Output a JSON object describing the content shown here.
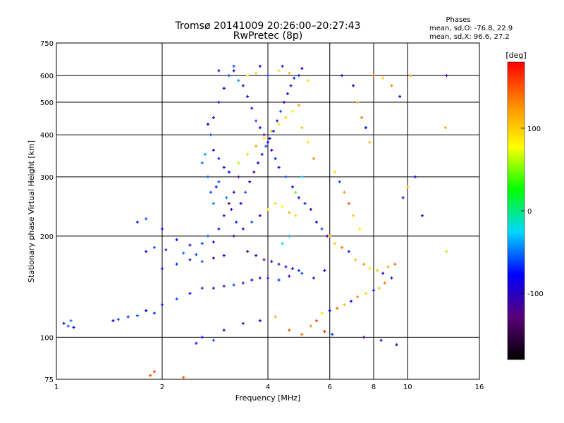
{
  "chart_data": {
    "type": "scatter",
    "title": "Tromsø 20141009 20:26:00–20:27:43",
    "subtitle": "RwPretec (8p)",
    "xlabel": "Frequency [MHz]",
    "ylabel": "Stationary phase Virtual Height [km]",
    "x_scale": "log",
    "y_scale": "log",
    "xlim": [
      1,
      16
    ],
    "ylim": [
      75,
      750
    ],
    "x_ticks": [
      1,
      2,
      4,
      6,
      8,
      10,
      16
    ],
    "x_tick_labels": [
      "1",
      "2",
      "4",
      "6",
      "8",
      "10",
      "16"
    ],
    "y_ticks": [
      75,
      100,
      200,
      300,
      400,
      500,
      600,
      750
    ],
    "y_tick_labels": [
      "75",
      "100",
      "200",
      "300",
      "400",
      "500",
      "600",
      "750"
    ],
    "grid": true,
    "phases_title": "Phases",
    "phases_o": "mean, sd,O: -76.8, 22.9",
    "phases_x": "mean, sd,X: 96.6, 27.2",
    "colorbar": {
      "label": "[deg]",
      "range": [
        -180,
        180
      ],
      "ticks": [
        100,
        0,
        -100
      ],
      "tick_labels": [
        "100",
        "0",
        "-100"
      ],
      "colormap": [
        "#000000",
        "#5a0078",
        "#0000ff",
        "#00d7ff",
        "#00ff00",
        "#ffff00",
        "#ff8c00",
        "#ff0000"
      ]
    },
    "points": [
      [
        1.05,
        110,
        -90
      ],
      [
        1.08,
        108,
        -60
      ],
      [
        1.12,
        107,
        -75
      ],
      [
        1.1,
        112,
        -50
      ],
      [
        1.45,
        112,
        -80
      ],
      [
        1.5,
        113,
        -60
      ],
      [
        1.6,
        115,
        -70
      ],
      [
        1.7,
        116,
        -55
      ],
      [
        1.8,
        120,
        -85
      ],
      [
        1.9,
        118,
        -65
      ],
      [
        2.0,
        125,
        -75
      ],
      [
        2.2,
        130,
        -60
      ],
      [
        2.4,
        135,
        -80
      ],
      [
        2.6,
        140,
        -70
      ],
      [
        2.8,
        140,
        -95
      ],
      [
        3.0,
        142,
        -110
      ],
      [
        3.2,
        143,
        -60
      ],
      [
        3.4,
        145,
        -100
      ],
      [
        3.6,
        148,
        -80
      ],
      [
        3.8,
        150,
        -120
      ],
      [
        4.0,
        150,
        -90
      ],
      [
        4.3,
        148,
        -70
      ],
      [
        4.6,
        152,
        -110
      ],
      [
        5.0,
        155,
        -60
      ],
      [
        5.4,
        150,
        -90
      ],
      [
        5.8,
        158,
        -80
      ],
      [
        1.7,
        220,
        -70
      ],
      [
        1.8,
        225,
        -60
      ],
      [
        2.0,
        210,
        -80
      ],
      [
        2.2,
        195,
        -75
      ],
      [
        2.4,
        188,
        -90
      ],
      [
        2.6,
        190,
        -60
      ],
      [
        2.8,
        192,
        -85
      ],
      [
        1.8,
        180,
        -90
      ],
      [
        1.9,
        185,
        -60
      ],
      [
        2.05,
        182,
        -70
      ],
      [
        2.3,
        178,
        -50
      ],
      [
        2.5,
        176,
        -65
      ],
      [
        2.7,
        200,
        -55
      ],
      [
        2.9,
        210,
        -80
      ],
      [
        3.0,
        230,
        -100
      ],
      [
        3.1,
        250,
        -120
      ],
      [
        3.2,
        270,
        -90
      ],
      [
        3.3,
        300,
        -110
      ],
      [
        3.1,
        310,
        -80
      ],
      [
        3.0,
        320,
        -100
      ],
      [
        2.9,
        340,
        -70
      ],
      [
        2.8,
        360,
        -90
      ],
      [
        2.75,
        400,
        -60
      ],
      [
        2.7,
        430,
        -80
      ],
      [
        2.8,
        450,
        -95
      ],
      [
        2.9,
        500,
        -70
      ],
      [
        3.0,
        550,
        -85
      ],
      [
        3.1,
        600,
        -60
      ],
      [
        3.2,
        620,
        -90
      ],
      [
        3.3,
        580,
        -40
      ],
      [
        3.4,
        560,
        -110
      ],
      [
        3.5,
        520,
        -80
      ],
      [
        3.6,
        480,
        -100
      ],
      [
        3.7,
        440,
        -60
      ],
      [
        3.8,
        420,
        -90
      ],
      [
        3.9,
        400,
        -120
      ],
      [
        4.0,
        380,
        -80
      ],
      [
        4.1,
        360,
        -100
      ],
      [
        4.2,
        340,
        -70
      ],
      [
        4.3,
        320,
        -90
      ],
      [
        4.5,
        300,
        -60
      ],
      [
        4.7,
        280,
        -85
      ],
      [
        4.9,
        260,
        -100
      ],
      [
        5.1,
        250,
        -70
      ],
      [
        5.3,
        240,
        -110
      ],
      [
        5.5,
        220,
        -80
      ],
      [
        5.7,
        210,
        -60
      ],
      [
        5.9,
        200,
        -95
      ],
      [
        3.2,
        200,
        -110
      ],
      [
        3.4,
        210,
        -90
      ],
      [
        3.6,
        220,
        -60
      ],
      [
        3.8,
        230,
        -100
      ],
      [
        4.0,
        240,
        90
      ],
      [
        4.2,
        250,
        100
      ],
      [
        4.4,
        245,
        80
      ],
      [
        4.6,
        235,
        110
      ],
      [
        4.8,
        230,
        95
      ],
      [
        3.5,
        180,
        -120
      ],
      [
        3.7,
        175,
        -100
      ],
      [
        3.9,
        170,
        -130
      ],
      [
        4.1,
        168,
        -90
      ],
      [
        4.3,
        165,
        -110
      ],
      [
        4.5,
        162,
        -80
      ],
      [
        4.7,
        160,
        -100
      ],
      [
        4.9,
        158,
        -70
      ],
      [
        3.3,
        330,
        60
      ],
      [
        3.5,
        350,
        100
      ],
      [
        3.7,
        370,
        120
      ],
      [
        3.9,
        390,
        90
      ],
      [
        4.1,
        410,
        110
      ],
      [
        4.3,
        430,
        70
      ],
      [
        4.5,
        450,
        100
      ],
      [
        4.7,
        470,
        85
      ],
      [
        4.9,
        490,
        120
      ],
      [
        5.0,
        420,
        105
      ],
      [
        5.2,
        380,
        90
      ],
      [
        5.4,
        340,
        130
      ],
      [
        3.5,
        600,
        80
      ],
      [
        3.7,
        610,
        100
      ],
      [
        4.0,
        600,
        -60
      ],
      [
        4.3,
        620,
        95
      ],
      [
        4.6,
        610,
        110
      ],
      [
        4.9,
        600,
        -70
      ],
      [
        5.2,
        580,
        90
      ],
      [
        5.0,
        300,
        -30
      ],
      [
        4.8,
        270,
        40
      ],
      [
        4.6,
        200,
        -40
      ],
      [
        4.4,
        190,
        -20
      ],
      [
        6.5,
        600,
        -90
      ],
      [
        7.0,
        560,
        -110
      ],
      [
        7.2,
        500,
        120
      ],
      [
        7.4,
        450,
        140
      ],
      [
        7.6,
        420,
        -80
      ],
      [
        7.8,
        380,
        110
      ],
      [
        6.2,
        310,
        90
      ],
      [
        6.4,
        290,
        -60
      ],
      [
        6.6,
        270,
        130
      ],
      [
        6.8,
        250,
        150
      ],
      [
        7.0,
        230,
        100
      ],
      [
        7.3,
        210,
        90
      ],
      [
        6.0,
        200,
        120
      ],
      [
        6.2,
        190,
        100
      ],
      [
        6.5,
        185,
        140
      ],
      [
        6.8,
        180,
        -70
      ],
      [
        7.1,
        170,
        110
      ],
      [
        7.5,
        165,
        130
      ],
      [
        7.8,
        160,
        90
      ],
      [
        8.2,
        158,
        100
      ],
      [
        8.5,
        155,
        -90
      ],
      [
        8.8,
        162,
        120
      ],
      [
        9.2,
        165,
        150
      ],
      [
        9.0,
        150,
        -100
      ],
      [
        8.6,
        145,
        140
      ],
      [
        8.3,
        140,
        110
      ],
      [
        8.0,
        138,
        -80
      ],
      [
        7.6,
        135,
        100
      ],
      [
        7.2,
        132,
        130
      ],
      [
        6.9,
        128,
        -90
      ],
      [
        6.6,
        125,
        110
      ],
      [
        6.3,
        122,
        140
      ],
      [
        6.0,
        120,
        -80
      ],
      [
        5.7,
        118,
        90
      ],
      [
        5.5,
        112,
        160
      ],
      [
        5.3,
        108,
        130
      ],
      [
        5.8,
        104,
        170
      ],
      [
        6.1,
        102,
        -60
      ],
      [
        7.5,
        100,
        -110
      ],
      [
        8.4,
        98,
        -90
      ],
      [
        9.3,
        95,
        -100
      ],
      [
        8.0,
        600,
        150
      ],
      [
        8.5,
        590,
        100
      ],
      [
        9.0,
        560,
        130
      ],
      [
        9.5,
        520,
        -80
      ],
      [
        10.2,
        600,
        120
      ],
      [
        10.5,
        300,
        -90
      ],
      [
        10.0,
        280,
        110
      ],
      [
        9.7,
        260,
        -100
      ],
      [
        12.9,
        600,
        -110
      ],
      [
        12.8,
        420,
        120
      ],
      [
        12.9,
        180,
        60
      ],
      [
        11.0,
        230,
        -90
      ],
      [
        1.85,
        77,
        150
      ],
      [
        1.9,
        79,
        160
      ],
      [
        2.3,
        76,
        140
      ],
      [
        2.5,
        96,
        -70
      ],
      [
        2.6,
        100,
        -90
      ],
      [
        2.8,
        98,
        -60
      ],
      [
        3.0,
        105,
        -80
      ],
      [
        3.4,
        110,
        -100
      ],
      [
        3.8,
        112,
        -90
      ],
      [
        4.2,
        115,
        120
      ],
      [
        4.6,
        105,
        150
      ],
      [
        5.0,
        102,
        140
      ],
      [
        2.0,
        160,
        -90
      ],
      [
        2.2,
        165,
        -70
      ],
      [
        2.4,
        170,
        -100
      ],
      [
        2.6,
        168,
        -60
      ],
      [
        2.8,
        172,
        -120
      ],
      [
        3.0,
        175,
        -80
      ],
      [
        2.9,
        290,
        -60
      ],
      [
        2.85,
        280,
        -90
      ],
      [
        3.05,
        260,
        -50
      ],
      [
        3.15,
        240,
        -110
      ],
      [
        3.25,
        220,
        -70
      ],
      [
        3.35,
        250,
        -100
      ],
      [
        3.45,
        270,
        -60
      ],
      [
        3.55,
        290,
        -90
      ],
      [
        3.65,
        310,
        -120
      ],
      [
        3.75,
        330,
        -80
      ],
      [
        3.85,
        350,
        -100
      ],
      [
        3.95,
        370,
        -60
      ],
      [
        4.05,
        390,
        -90
      ],
      [
        4.15,
        410,
        -70
      ],
      [
        4.25,
        440,
        -100
      ],
      [
        4.35,
        470,
        -60
      ],
      [
        4.45,
        500,
        -90
      ],
      [
        4.55,
        530,
        -80
      ],
      [
        4.65,
        560,
        -100
      ],
      [
        4.75,
        590,
        -70
      ],
      [
        2.9,
        620,
        -80
      ],
      [
        3.2,
        640,
        -60
      ],
      [
        3.8,
        640,
        -100
      ],
      [
        4.4,
        640,
        -70
      ],
      [
        5.0,
        630,
        -90
      ],
      [
        2.6,
        330,
        -50
      ],
      [
        2.65,
        350,
        -40
      ],
      [
        2.7,
        300,
        -55
      ],
      [
        2.75,
        270,
        -60
      ],
      [
        2.8,
        250,
        -45
      ]
    ]
  }
}
